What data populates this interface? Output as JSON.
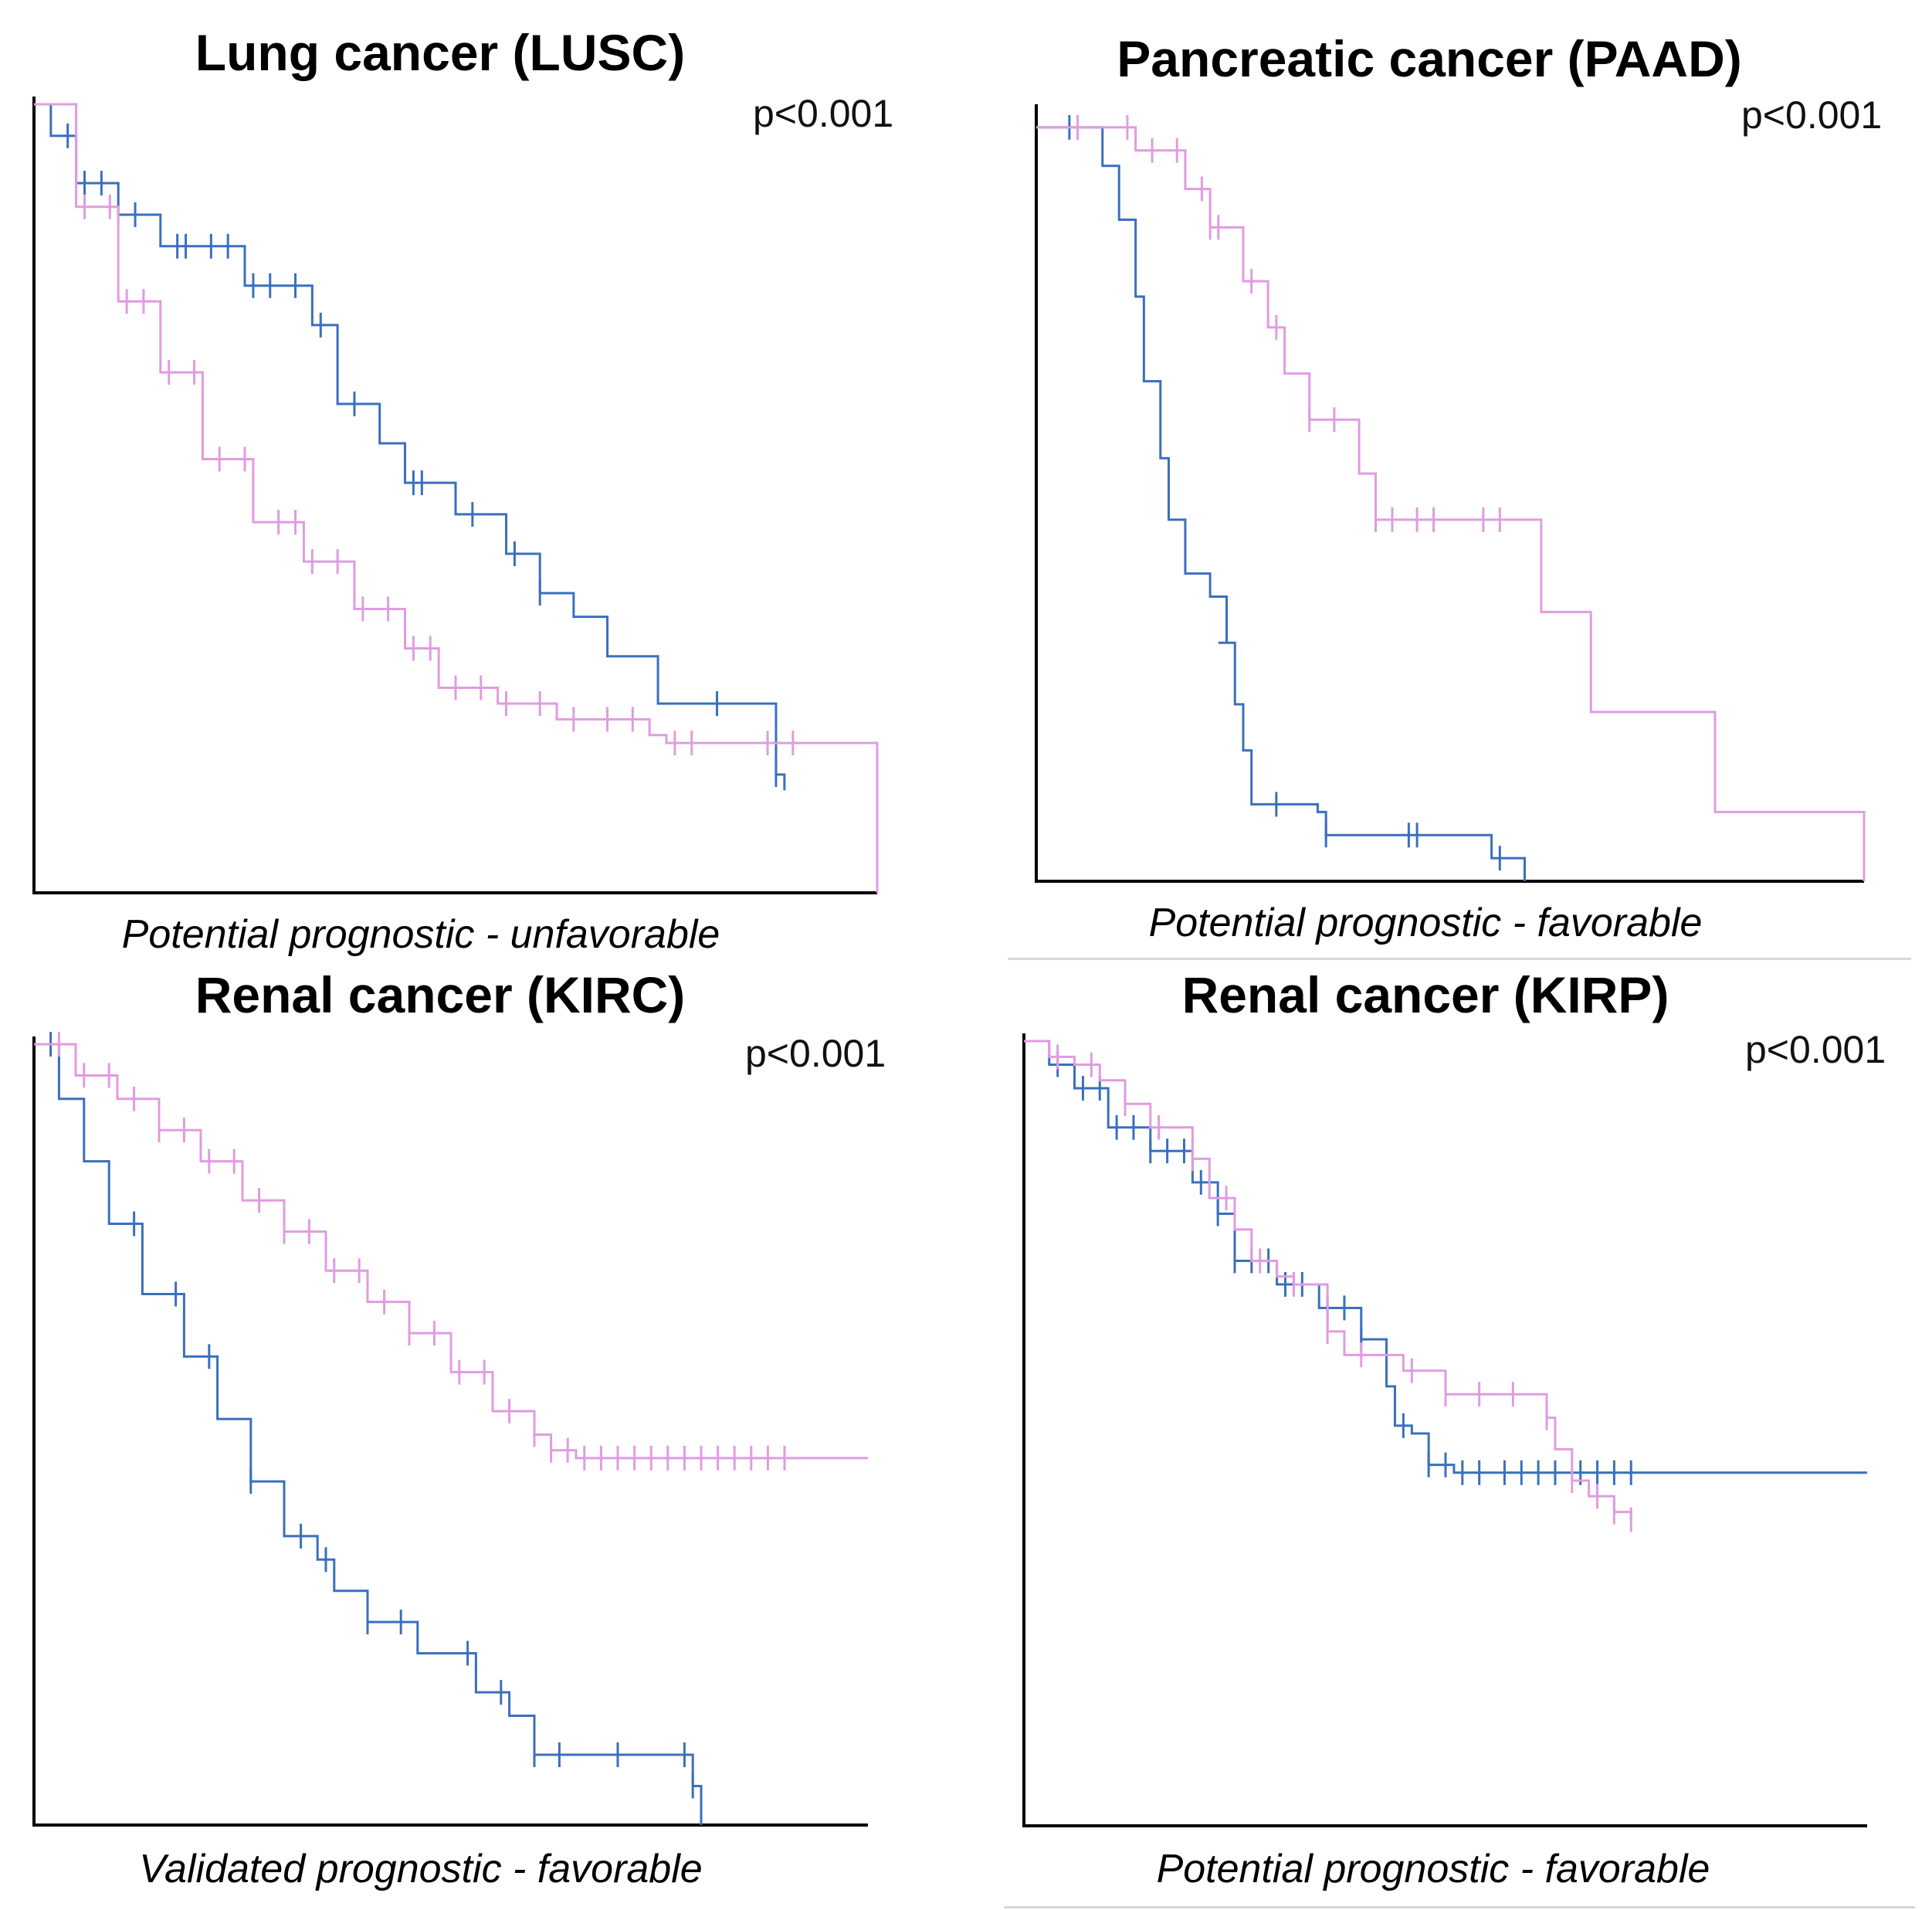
{
  "colors": {
    "high": "#3a6fbf",
    "low": "#e09ce0",
    "axis": "#000000"
  },
  "chart_data": [
    {
      "type": "line",
      "title": "Lung cancer (LUSC)",
      "p_value": "p<0.001",
      "caption": "Potential prognostic - unfavorable",
      "xlim": [
        0,
        1
      ],
      "ylim": [
        0,
        1
      ],
      "series": [
        {
          "color": "#3a6fbf",
          "points": [
            [
              0,
              1
            ],
            [
              0.02,
              0.96
            ],
            [
              0.05,
              0.9
            ],
            [
              0.1,
              0.86
            ],
            [
              0.15,
              0.82
            ],
            [
              0.25,
              0.77
            ],
            [
              0.33,
              0.72
            ],
            [
              0.36,
              0.62
            ],
            [
              0.41,
              0.57
            ],
            [
              0.44,
              0.52
            ],
            [
              0.5,
              0.48
            ],
            [
              0.56,
              0.43
            ],
            [
              0.6,
              0.38
            ],
            [
              0.64,
              0.35
            ],
            [
              0.68,
              0.3
            ],
            [
              0.74,
              0.24
            ],
            [
              0.88,
              0.24
            ],
            [
              0.88,
              0.15
            ],
            [
              0.89,
              0.13
            ]
          ],
          "censors": [
            0.04,
            0.06,
            0.08,
            0.12,
            0.17,
            0.18,
            0.21,
            0.23,
            0.26,
            0.28,
            0.31,
            0.34,
            0.38,
            0.45,
            0.46,
            0.52,
            0.57,
            0.6,
            0.81,
            0.88
          ]
        },
        {
          "color": "#e09ce0",
          "points": [
            [
              0,
              1
            ],
            [
              0.05,
              0.87
            ],
            [
              0.1,
              0.75
            ],
            [
              0.15,
              0.66
            ],
            [
              0.2,
              0.55
            ],
            [
              0.26,
              0.47
            ],
            [
              0.32,
              0.42
            ],
            [
              0.38,
              0.36
            ],
            [
              0.44,
              0.31
            ],
            [
              0.48,
              0.26
            ],
            [
              0.55,
              0.24
            ],
            [
              0.62,
              0.22
            ],
            [
              0.73,
              0.2
            ],
            [
              0.75,
              0.19
            ],
            [
              1.0,
              0.19
            ],
            [
              1.0,
              0
            ]
          ],
          "censors": [
            0.06,
            0.09,
            0.11,
            0.13,
            0.16,
            0.19,
            0.22,
            0.25,
            0.29,
            0.31,
            0.33,
            0.36,
            0.39,
            0.42,
            0.45,
            0.47,
            0.5,
            0.53,
            0.56,
            0.6,
            0.64,
            0.68,
            0.71,
            0.76,
            0.78,
            0.87,
            0.9
          ]
        }
      ]
    },
    {
      "type": "line",
      "title": "Pancreatic cancer (PAAD)",
      "p_value": "p<0.001",
      "caption": "Potential prognostic - favorable",
      "xlim": [
        0,
        1
      ],
      "ylim": [
        0,
        1
      ],
      "series": [
        {
          "color": "#3a6fbf",
          "points": [
            [
              0,
              0.98
            ],
            [
              0.05,
              0.98
            ],
            [
              0.08,
              0.93
            ],
            [
              0.1,
              0.86
            ],
            [
              0.12,
              0.76
            ],
            [
              0.13,
              0.65
            ],
            [
              0.15,
              0.55
            ],
            [
              0.16,
              0.47
            ],
            [
              0.18,
              0.4
            ],
            [
              0.21,
              0.37
            ],
            [
              0.23,
              0.31
            ],
            [
              0.22,
              0.31
            ],
            [
              0.22,
              0.31
            ],
            [
              0.24,
              0.23
            ],
            [
              0.25,
              0.17
            ],
            [
              0.26,
              0.1
            ],
            [
              0.34,
              0.09
            ],
            [
              0.35,
              0.06
            ],
            [
              0.44,
              0.06
            ],
            [
              0.54,
              0.06
            ],
            [
              0.55,
              0.03
            ],
            [
              0.59,
              0.0
            ],
            [
              0.59,
              -0.45
            ]
          ],
          "censors": [
            0.04,
            0.29,
            0.35,
            0.45,
            0.46,
            0.56
          ]
        },
        {
          "color": "#e09ce0",
          "points": [
            [
              0,
              0.98
            ],
            [
              0.08,
              0.98
            ],
            [
              0.12,
              0.95
            ],
            [
              0.18,
              0.9
            ],
            [
              0.21,
              0.85
            ],
            [
              0.25,
              0.78
            ],
            [
              0.28,
              0.72
            ],
            [
              0.3,
              0.66
            ],
            [
              0.33,
              0.6
            ],
            [
              0.38,
              0.6
            ],
            [
              0.39,
              0.53
            ],
            [
              0.41,
              0.47
            ],
            [
              0.45,
              0.47
            ],
            [
              0.61,
              0.47
            ],
            [
              0.61,
              0.35
            ],
            [
              0.67,
              0.35
            ],
            [
              0.67,
              0.22
            ],
            [
              0.82,
              0.22
            ],
            [
              0.82,
              0.09
            ],
            [
              1.0,
              0.09
            ],
            [
              1.0,
              0
            ]
          ],
          "censors": [
            0.05,
            0.11,
            0.14,
            0.17,
            0.2,
            0.21,
            0.22,
            0.26,
            0.29,
            0.33,
            0.36,
            0.41,
            0.43,
            0.46,
            0.48,
            0.54,
            0.56
          ]
        }
      ]
    },
    {
      "type": "line",
      "title": "Renal cancer (KIRC)",
      "p_value": "p<0.001",
      "caption": "Validated prognostic - favorable",
      "xlim": [
        0,
        1
      ],
      "ylim": [
        0,
        1
      ],
      "series": [
        {
          "color": "#3a6fbf",
          "points": [
            [
              0,
              1
            ],
            [
              0.03,
              0.93
            ],
            [
              0.06,
              0.85
            ],
            [
              0.09,
              0.77
            ],
            [
              0.13,
              0.68
            ],
            [
              0.18,
              0.6
            ],
            [
              0.22,
              0.52
            ],
            [
              0.26,
              0.44
            ],
            [
              0.3,
              0.37
            ],
            [
              0.34,
              0.34
            ],
            [
              0.36,
              0.3
            ],
            [
              0.4,
              0.26
            ],
            [
              0.46,
              0.22
            ],
            [
              0.53,
              0.17
            ],
            [
              0.57,
              0.14
            ],
            [
              0.6,
              0.09
            ],
            [
              0.78,
              0.09
            ],
            [
              0.79,
              0.05
            ],
            [
              0.8,
              0.0
            ]
          ],
          "censors": [
            0.02,
            0.12,
            0.17,
            0.21,
            0.26,
            0.32,
            0.35,
            0.4,
            0.44,
            0.52,
            0.56,
            0.6,
            0.63,
            0.7,
            0.78,
            0.79
          ]
        },
        {
          "color": "#e09ce0",
          "points": [
            [
              0,
              1
            ],
            [
              0.05,
              0.96
            ],
            [
              0.1,
              0.93
            ],
            [
              0.15,
              0.89
            ],
            [
              0.2,
              0.85
            ],
            [
              0.25,
              0.8
            ],
            [
              0.3,
              0.76
            ],
            [
              0.35,
              0.71
            ],
            [
              0.4,
              0.67
            ],
            [
              0.45,
              0.63
            ],
            [
              0.5,
              0.58
            ],
            [
              0.55,
              0.53
            ],
            [
              0.6,
              0.5
            ],
            [
              0.62,
              0.48
            ],
            [
              0.65,
              0.47
            ],
            [
              1.0,
              0.47
            ]
          ],
          "censors": [
            0.03,
            0.06,
            0.09,
            0.12,
            0.15,
            0.18,
            0.21,
            0.24,
            0.27,
            0.3,
            0.33,
            0.36,
            0.39,
            0.42,
            0.45,
            0.48,
            0.51,
            0.54,
            0.57,
            0.6,
            0.62,
            0.64,
            0.66,
            0.68,
            0.7,
            0.72,
            0.74,
            0.76,
            0.78,
            0.8,
            0.82,
            0.84,
            0.86,
            0.88,
            0.9
          ]
        }
      ]
    },
    {
      "type": "line",
      "title": "Renal cancer (KIRP)",
      "p_value": "p<0.001",
      "caption": "Potential prognostic - favorable",
      "xlim": [
        0,
        1
      ],
      "ylim": [
        0,
        1
      ],
      "series": [
        {
          "color": "#3a6fbf",
          "points": [
            [
              0,
              1
            ],
            [
              0.03,
              0.97
            ],
            [
              0.06,
              0.94
            ],
            [
              0.1,
              0.89
            ],
            [
              0.15,
              0.86
            ],
            [
              0.2,
              0.82
            ],
            [
              0.23,
              0.78
            ],
            [
              0.25,
              0.72
            ],
            [
              0.3,
              0.69
            ],
            [
              0.35,
              0.66
            ],
            [
              0.4,
              0.62
            ],
            [
              0.43,
              0.56
            ],
            [
              0.44,
              0.51
            ],
            [
              0.46,
              0.5
            ],
            [
              0.48,
              0.46
            ],
            [
              0.5,
              0.46
            ],
            [
              0.51,
              0.45
            ],
            [
              0.57,
              0.45
            ],
            [
              1.0,
              0.45
            ]
          ],
          "censors": [
            0.04,
            0.07,
            0.09,
            0.11,
            0.13,
            0.15,
            0.17,
            0.19,
            0.21,
            0.23,
            0.25,
            0.27,
            0.29,
            0.31,
            0.33,
            0.36,
            0.38,
            0.4,
            0.45,
            0.48,
            0.5,
            0.52,
            0.54,
            0.57,
            0.59,
            0.61,
            0.63,
            0.66,
            0.68,
            0.7,
            0.72
          ]
        },
        {
          "color": "#e09ce0",
          "points": [
            [
              0,
              1
            ],
            [
              0.03,
              0.98
            ],
            [
              0.06,
              0.97
            ],
            [
              0.09,
              0.95
            ],
            [
              0.12,
              0.92
            ],
            [
              0.15,
              0.89
            ],
            [
              0.2,
              0.85
            ],
            [
              0.22,
              0.8
            ],
            [
              0.25,
              0.76
            ],
            [
              0.27,
              0.72
            ],
            [
              0.3,
              0.7
            ],
            [
              0.32,
              0.69
            ],
            [
              0.36,
              0.63
            ],
            [
              0.38,
              0.6
            ],
            [
              0.45,
              0.58
            ],
            [
              0.5,
              0.55
            ],
            [
              0.62,
              0.52
            ],
            [
              0.63,
              0.48
            ],
            [
              0.65,
              0.44
            ],
            [
              0.67,
              0.42
            ],
            [
              0.7,
              0.4
            ],
            [
              0.72,
              0.39
            ]
          ],
          "censors": [
            0.04,
            0.08,
            0.12,
            0.16,
            0.2,
            0.24,
            0.28,
            0.32,
            0.36,
            0.4,
            0.46,
            0.5,
            0.54,
            0.58,
            0.62,
            0.65,
            0.68,
            0.7,
            0.72
          ]
        }
      ]
    }
  ]
}
